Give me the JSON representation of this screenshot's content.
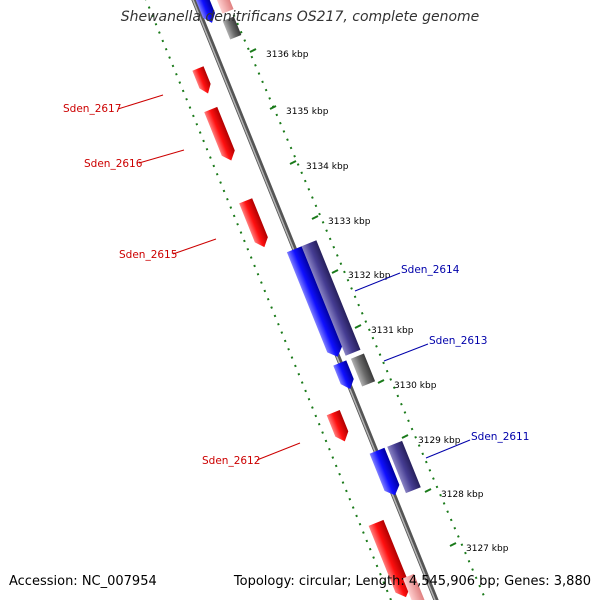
{
  "title": "Shewanella denitrificans OS217, complete genome",
  "footer": {
    "accession": "Accession: NC_007954",
    "stats": "Topology: circular; Length: 4,545,906 bp; Genes: 3,880"
  },
  "colors": {
    "forward_gene": "#ff0000",
    "reverse_gene": "#0000ff",
    "reverse_gene_dark": "#3d3585",
    "unknown_gene": "#666666",
    "backbone": "#888888",
    "tick": "#1a7a1a",
    "label_forward": "#cc0000",
    "label_reverse": "#0000aa"
  },
  "ticks": [
    "3136 kbp",
    "3135 kbp",
    "3134 kbp",
    "3133 kbp",
    "3132 kbp",
    "3131 kbp",
    "3130 kbp",
    "3129 kbp",
    "3128 kbp",
    "3127 kbp"
  ],
  "gene_labels": {
    "sden_2617": "Sden_2617",
    "sden_2616": "Sden_2616",
    "sden_2615": "Sden_2615",
    "sden_2612": "Sden_2612",
    "sden_2614": "Sden_2614",
    "sden_2613": "Sden_2613",
    "sden_2611": "Sden_2611"
  }
}
